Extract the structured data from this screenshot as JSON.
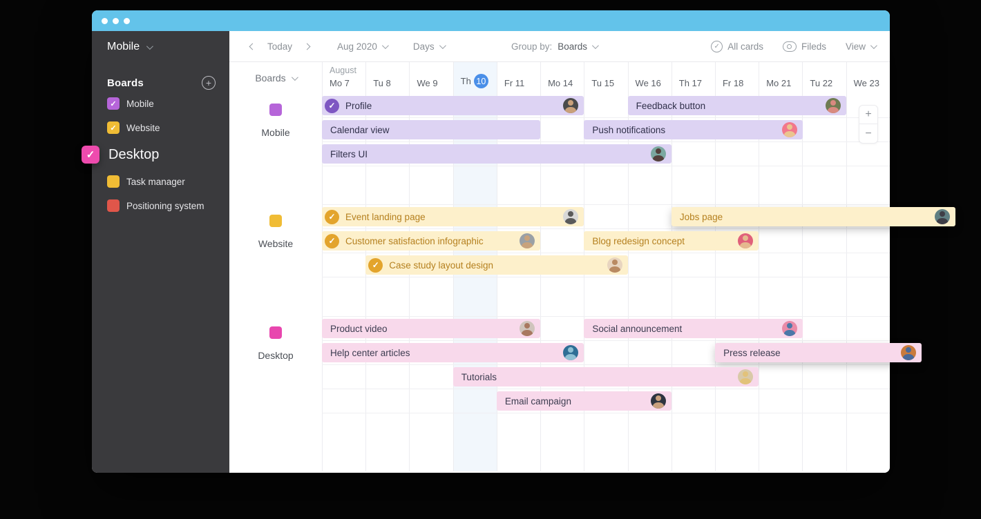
{
  "window": {
    "titlebar_color": "#63c3ea",
    "background_color": "#050505"
  },
  "sidebar": {
    "current_board": "Mobile",
    "boards_title": "Boards",
    "items": [
      {
        "label": "Mobile",
        "color": "#b665d9",
        "checked": true,
        "dragging": false
      },
      {
        "label": "Website",
        "color": "#f0bc35",
        "checked": true,
        "dragging": false
      },
      {
        "label": "Desktop",
        "color": "#ee4bae",
        "checked": true,
        "dragging": true
      },
      {
        "label": "Task manager",
        "color": "#f0bc35",
        "checked": false,
        "dragging": false
      },
      {
        "label": "Positioning system",
        "color": "#e0564a",
        "checked": false,
        "dragging": false
      }
    ]
  },
  "toolbar": {
    "today_label": "Today",
    "month_label": "Aug 2020",
    "scale_label": "Days",
    "group_by_label": "Group by:",
    "group_by_value": "Boards",
    "all_cards_label": "All cards",
    "fields_label": "Fileds",
    "view_label": "View"
  },
  "timeline": {
    "header_group_label": "Boards",
    "month_label": "August",
    "days": [
      "Mo 7",
      "Tu 8",
      "We 9",
      {
        "label": "Th",
        "badge": "10"
      },
      "Fr 11",
      "Mo 14",
      "Tu 15",
      "We 16",
      "Th 17",
      "Fr 18",
      "Mo 21",
      "Tu 22",
      "We 23"
    ],
    "today_index": 3,
    "today_color": "#4a8fe8",
    "groups": [
      {
        "name": "Mobile",
        "color": "#b665d9",
        "bar_bg": "#ddd3f3",
        "bar_text": "#30304a",
        "check_color": "#7e57c2",
        "empty_space": 56,
        "rows": [
          [
            {
              "title": "Profile",
              "start": 0,
              "end": 5,
              "done": true,
              "avatar": {
                "bg": "#4a4a4a",
                "tone": "#c9a07a"
              }
            },
            {
              "title": "Feedback button",
              "start": 7,
              "end": 11,
              "avatar": {
                "bg": "#6f7b52",
                "tone": "#d98a80"
              }
            }
          ],
          [
            {
              "title": "Calendar view",
              "start": 0,
              "end": 4
            },
            {
              "title": "Push notifications",
              "start": 6,
              "end": 10,
              "avatar": {
                "bg": "#f2788c",
                "tone": "#eac58f"
              }
            }
          ],
          [
            {
              "title": "Filters UI",
              "start": 0,
              "end": 7,
              "avatar": {
                "bg": "#7ba8a0",
                "tone": "#54413c"
              }
            }
          ]
        ]
      },
      {
        "name": "Website",
        "color": "#f0bc35",
        "bar_bg": "#fdf0cb",
        "bar_text": "#b5801f",
        "check_color": "#e3a42c",
        "empty_space": 57,
        "rows": [
          [
            {
              "title": "Event landing page",
              "start": 0,
              "end": 5,
              "done": true,
              "avatar": {
                "bg": "#d8d8d8",
                "tone": "#5a5a5a"
              }
            },
            {
              "title": "Jobs page",
              "start": 8,
              "end": 12,
              "overhang": 95,
              "avatar": {
                "bg": "#5f7f83",
                "tone": "#3e3e46"
              }
            }
          ],
          [
            {
              "title": "Customer satisfaction infographic",
              "start": 0,
              "end": 4,
              "done": true,
              "avatar": {
                "bg": "#9aa0a6",
                "tone": "#c8a27c"
              }
            },
            {
              "title": "Blog redesign concept",
              "start": 6,
              "end": 9,
              "avatar": {
                "bg": "#e0607a",
                "tone": "#e5b98e"
              }
            }
          ],
          [
            {
              "title": "Case study layout design",
              "start": 1,
              "end": 6,
              "done": true,
              "avatar": {
                "bg": "#e8d5c0",
                "tone": "#b98a62"
              }
            }
          ]
        ]
      },
      {
        "name": "Desktop",
        "color": "#e846ae",
        "bar_bg": "#f8d9eb",
        "bar_text": "#3c3c50",
        "check_color": "#d44a9e",
        "empty_space": 84,
        "rows": [
          [
            {
              "title": "Product video",
              "start": 0,
              "end": 4,
              "avatar": {
                "bg": "#cfc4bc",
                "tone": "#a87860"
              }
            },
            {
              "title": "Social announcement",
              "start": 6,
              "end": 10,
              "avatar": {
                "bg": "#e98ba8",
                "tone": "#4a78a8"
              }
            }
          ],
          [
            {
              "title": "Help center articles",
              "start": 0,
              "end": 5,
              "avatar": {
                "bg": "#2f6e96",
                "tone": "#8fc0d4"
              }
            },
            {
              "title": "Press release",
              "start": 9,
              "end": 12,
              "overhang": 46,
              "avatar": {
                "bg": "#c97b3d",
                "tone": "#4a6a9a"
              }
            }
          ],
          [
            {
              "title": "Tutorials",
              "start": 3,
              "end": 9,
              "avatar": {
                "bg": "#d9c9a8",
                "tone": "#e2c27a"
              }
            }
          ],
          [
            {
              "title": "Email campaign",
              "start": 4,
              "end": 7,
              "avatar": {
                "bg": "#2e3440",
                "tone": "#c9a07e"
              }
            }
          ]
        ]
      }
    ]
  },
  "zoom_controls": {
    "zoom_in": "+",
    "zoom_out": "−"
  }
}
